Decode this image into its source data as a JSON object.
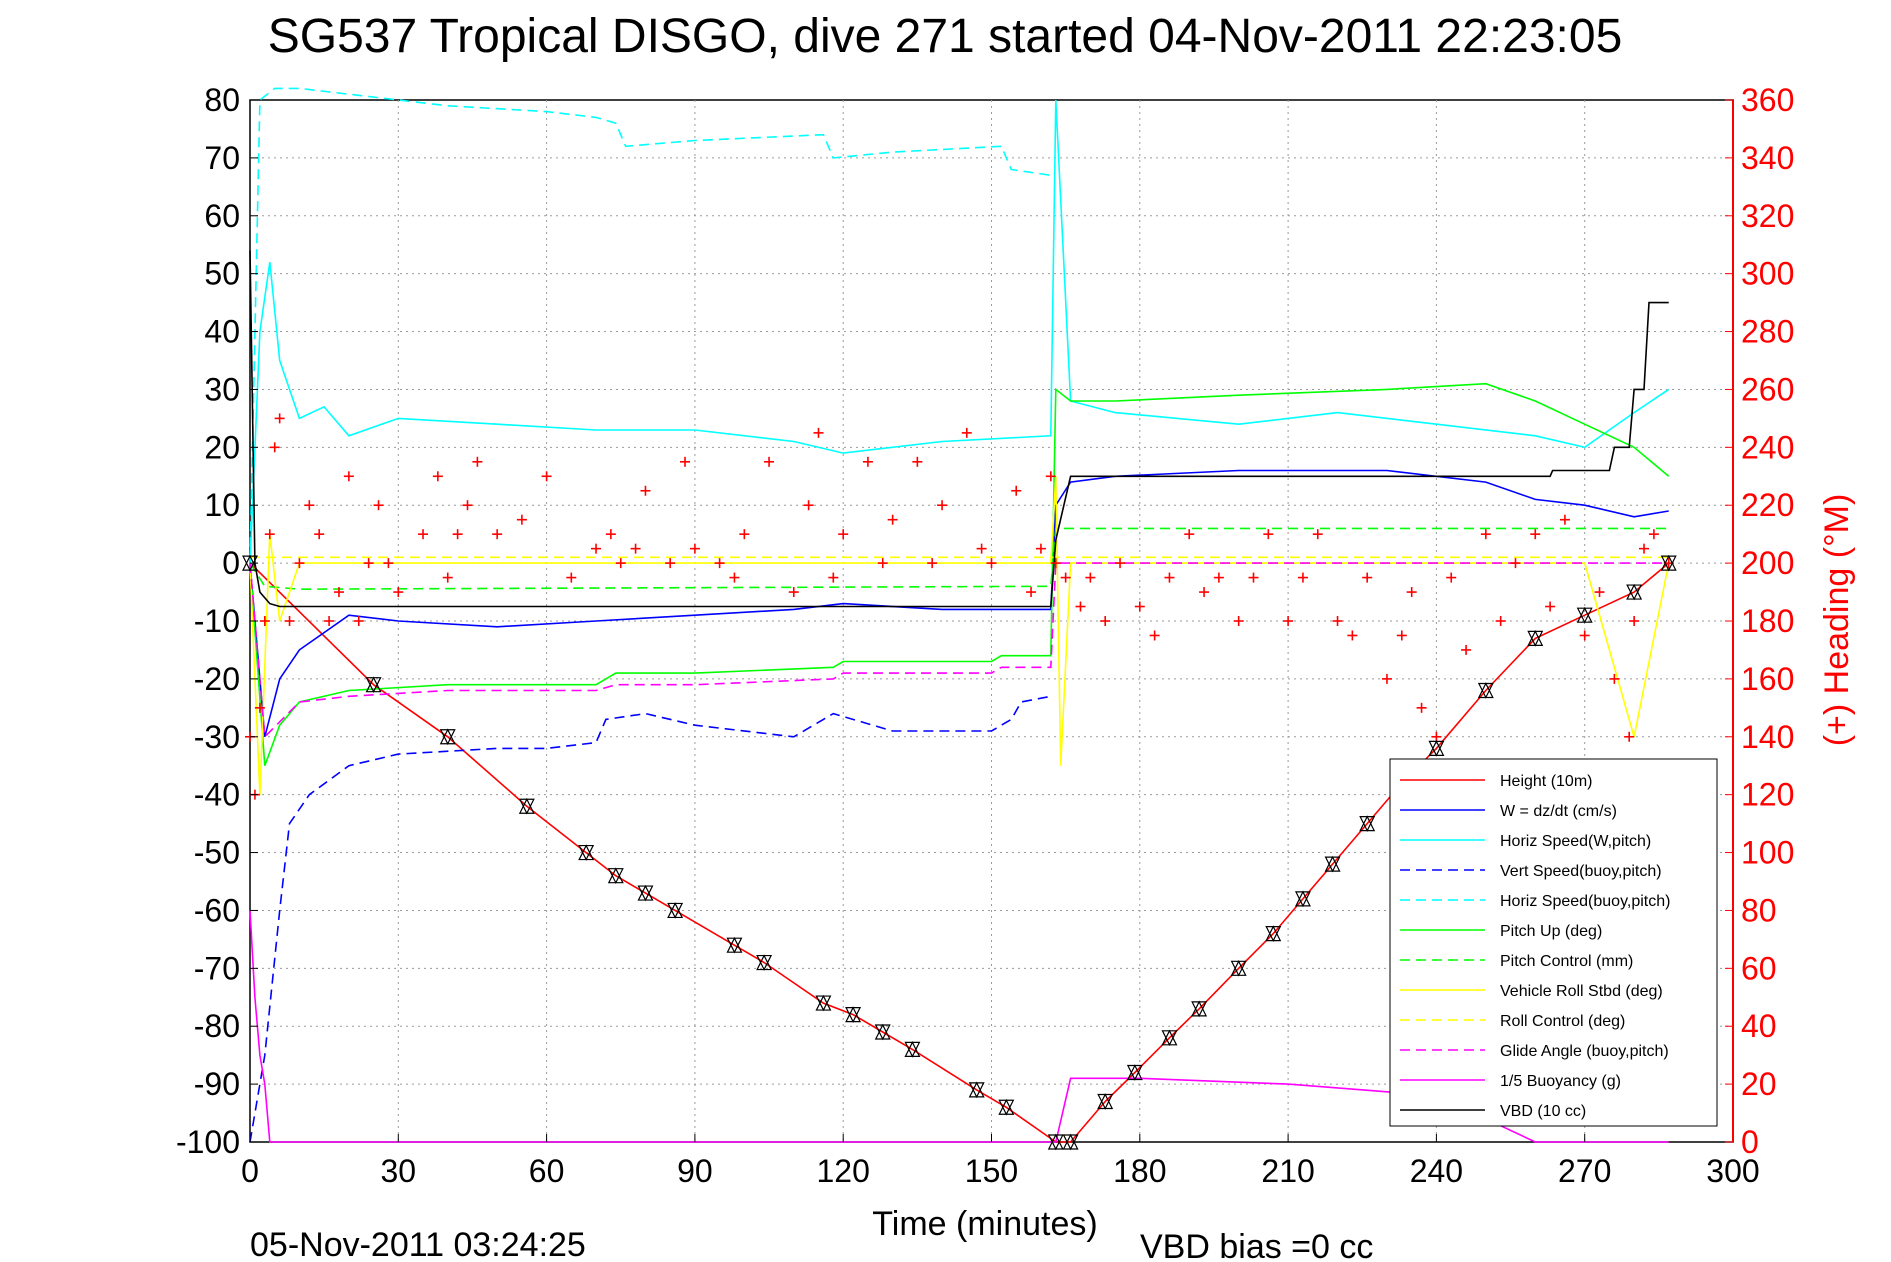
{
  "chart_data": {
    "type": "line",
    "title": "SG537 Tropical DISGO, dive 271 started 04-Nov-2011 22:23:05",
    "xlabel": "Time (minutes)",
    "ylabel_right": "(+) Heading (°M)",
    "xlim": [
      0,
      300
    ],
    "ylim": [
      -100,
      80
    ],
    "ylim_right": [
      0,
      360
    ],
    "x_ticks": [
      "0",
      "30",
      "60",
      "90",
      "120",
      "150",
      "180",
      "210",
      "240",
      "270",
      "300"
    ],
    "y_ticks": [
      "80",
      "70",
      "60",
      "50",
      "40",
      "30",
      "20",
      "10",
      "0",
      "-10",
      "-20",
      "-30",
      "-40",
      "-50",
      "-60",
      "-70",
      "-80",
      "-90",
      "-100"
    ],
    "y_ticks_right": [
      "360",
      "340",
      "320",
      "300",
      "280",
      "260",
      "240",
      "220",
      "200",
      "180",
      "160",
      "140",
      "120",
      "100",
      "80",
      "60",
      "40",
      "20",
      "0"
    ],
    "grid": true,
    "legend_position": "bottom-right",
    "end_time_label": "05-Nov-2011 03:24:25",
    "vbd_bias_label": "VBD bias =0 cc",
    "series": [
      {
        "name": "Height (10m)",
        "color": "#ff0000",
        "dash": false,
        "x": [
          0,
          25,
          40,
          56,
          68,
          74,
          80,
          86,
          98,
          104,
          116,
          122,
          128,
          134,
          147,
          153,
          163,
          166,
          173,
          179,
          186,
          192,
          200,
          207,
          213,
          219,
          226,
          233,
          240,
          250,
          260,
          270,
          280,
          287
        ],
        "y": [
          0,
          -21,
          -30,
          -42,
          -50,
          -54,
          -57,
          -60,
          -66,
          -69,
          -76,
          -78,
          -81,
          -84,
          -91,
          -94,
          -100,
          -100,
          -93,
          -88,
          -82,
          -77,
          -70,
          -64,
          -58,
          -52,
          -45,
          -38,
          -32,
          -22,
          -13,
          -9,
          -5,
          0
        ]
      },
      {
        "name": "W = dz/dt (cm/s)",
        "color": "#0000ff",
        "dash": false,
        "x": [
          0,
          3,
          6,
          10,
          15,
          20,
          30,
          50,
          70,
          90,
          110,
          120,
          140,
          162,
          163,
          166,
          175,
          200,
          230,
          250,
          260,
          270,
          280,
          287
        ],
        "y": [
          0,
          -30,
          -20,
          -15,
          -12,
          -9,
          -10,
          -11,
          -10,
          -9,
          -8,
          -7,
          -8,
          -8,
          10,
          14,
          15,
          16,
          16,
          14,
          11,
          10,
          8,
          9
        ]
      },
      {
        "name": "Horiz Speed(W,pitch)",
        "color": "#00ffff",
        "dash": false,
        "x": [
          0,
          2,
          4,
          6,
          10,
          15,
          20,
          30,
          50,
          70,
          90,
          110,
          120,
          140,
          162,
          163,
          166,
          175,
          200,
          220,
          240,
          260,
          270,
          280,
          287
        ],
        "y": [
          0,
          40,
          52,
          35,
          25,
          27,
          22,
          25,
          24,
          23,
          23,
          21,
          19,
          21,
          22,
          80,
          28,
          26,
          24,
          26,
          24,
          22,
          20,
          26,
          30
        ]
      },
      {
        "name": "Vert Speed(buoy,pitch)",
        "color": "#0000ff",
        "dash": true,
        "x": [
          0,
          3,
          6,
          8,
          12,
          20,
          30,
          50,
          60,
          70,
          72,
          80,
          90,
          110,
          116,
          118,
          130,
          150,
          154,
          156,
          162
        ],
        "y": [
          -100,
          -85,
          -60,
          -45,
          -40,
          -35,
          -33,
          -32,
          -32,
          -31,
          -27,
          -26,
          -28,
          -30,
          -27,
          -26,
          -29,
          -29,
          -27,
          -24,
          -23
        ]
      },
      {
        "name": "Horiz Speed(buoy,pitch)",
        "color": "#00ffff",
        "dash": true,
        "x": [
          0,
          2,
          5,
          10,
          20,
          40,
          60,
          70,
          74,
          76,
          90,
          116,
          118,
          130,
          152,
          154,
          162
        ],
        "y": [
          0,
          80,
          82,
          82,
          81,
          79,
          78,
          77,
          76,
          72,
          73,
          74,
          70,
          71,
          72,
          68,
          67
        ]
      },
      {
        "name": "Pitch Up (deg)",
        "color": "#00ff00",
        "dash": false,
        "x": [
          0,
          3,
          6,
          10,
          20,
          40,
          70,
          74,
          90,
          118,
          120,
          150,
          152,
          162,
          163,
          166,
          175,
          200,
          230,
          250,
          260,
          270,
          280,
          287
        ],
        "y": [
          0,
          -35,
          -28,
          -24,
          -22,
          -21,
          -21,
          -19,
          -19,
          -18,
          -17,
          -17,
          -16,
          -16,
          30,
          28,
          28,
          29,
          30,
          31,
          28,
          24,
          20,
          15
        ]
      },
      {
        "name": "Pitch Control (mm)",
        "color": "#00ff00",
        "dash": true,
        "x": [
          0,
          3,
          10,
          162,
          163,
          287
        ],
        "y": [
          0,
          -4,
          -4.5,
          -4,
          6,
          6
        ]
      },
      {
        "name": "Vehicle Roll Stbd (deg)",
        "color": "#ffff00",
        "dash": false,
        "x": [
          0,
          2,
          4,
          6,
          10,
          20,
          40,
          70,
          100,
          130,
          162,
          163,
          164,
          166,
          200,
          240,
          270,
          280,
          287
        ],
        "y": [
          0,
          -40,
          5,
          -10,
          0,
          0,
          0,
          0,
          0,
          0,
          0,
          15,
          -35,
          0,
          0,
          0,
          0,
          -30,
          0
        ]
      },
      {
        "name": "Roll Control (deg)",
        "color": "#ffff00",
        "dash": true,
        "x": [
          0,
          287
        ],
        "y": [
          1,
          1
        ]
      },
      {
        "name": "Glide Angle (buoy,pitch)",
        "color": "#ff00ff",
        "dash": true,
        "x": [
          0,
          3,
          10,
          20,
          40,
          70,
          74,
          90,
          118,
          120,
          150,
          152,
          162,
          163,
          287
        ],
        "y": [
          0,
          -30,
          -24,
          -23,
          -22,
          -22,
          -21,
          -21,
          -20,
          -19,
          -19,
          -18,
          -18,
          0,
          0
        ]
      },
      {
        "name": "1/5 Buoyancy (g)",
        "color": "#ff00ff",
        "dash": false,
        "x": [
          0,
          1,
          2,
          3,
          4,
          162,
          163,
          166,
          180,
          210,
          240,
          260,
          287
        ],
        "y": [
          -60,
          -75,
          -85,
          -90,
          -100,
          -100,
          -100,
          -89,
          -89,
          -90,
          -92,
          -100,
          -100
        ]
      },
      {
        "name": "VBD (10 cc)",
        "color": "#000000",
        "dash": false,
        "x": [
          0,
          1,
          2,
          4,
          6,
          10,
          162,
          163,
          166,
          263,
          263.5,
          275,
          276,
          279,
          280,
          282,
          283,
          287
        ],
        "y": [
          54,
          0,
          -5,
          -7,
          -7.5,
          -7.5,
          -7.5,
          4,
          15,
          15,
          16,
          16,
          20,
          20,
          30,
          30,
          45,
          45
        ]
      }
    ],
    "heading": {
      "name": "(+) Heading (°M)",
      "color": "#ff0000",
      "marker": "+",
      "x": [
        0,
        1,
        2,
        3,
        4,
        5,
        6,
        8,
        10,
        12,
        14,
        16,
        18,
        20,
        22,
        24,
        26,
        28,
        30,
        35,
        38,
        40,
        42,
        44,
        46,
        50,
        55,
        60,
        65,
        70,
        73,
        75,
        78,
        80,
        85,
        88,
        90,
        95,
        98,
        100,
        105,
        110,
        113,
        115,
        118,
        120,
        125,
        128,
        130,
        135,
        138,
        140,
        145,
        148,
        150,
        155,
        158,
        160,
        162,
        163,
        165,
        168,
        170,
        173,
        176,
        180,
        183,
        186,
        190,
        193,
        196,
        200,
        203,
        206,
        210,
        213,
        216,
        220,
        223,
        226,
        230,
        233,
        235,
        237,
        240,
        243,
        246,
        250,
        253,
        256,
        260,
        263,
        266,
        270,
        273,
        276,
        278,
        279,
        280,
        282,
        284,
        287
      ],
      "y": [
        140,
        120,
        150,
        180,
        210,
        240,
        250,
        180,
        200,
        220,
        210,
        180,
        190,
        230,
        180,
        200,
        220,
        200,
        190,
        210,
        230,
        195,
        210,
        220,
        235,
        210,
        215,
        230,
        195,
        205,
        210,
        200,
        205,
        225,
        200,
        235,
        205,
        200,
        195,
        210,
        235,
        190,
        220,
        245,
        195,
        210,
        235,
        200,
        215,
        235,
        200,
        220,
        245,
        205,
        200,
        225,
        190,
        205,
        230,
        200,
        195,
        185,
        195,
        180,
        200,
        185,
        175,
        195,
        210,
        190,
        195,
        180,
        195,
        210,
        180,
        195,
        210,
        180,
        175,
        195,
        160,
        175,
        190,
        150,
        140,
        195,
        170,
        210,
        180,
        200,
        210,
        185,
        215,
        175,
        190,
        160,
        120,
        140,
        180,
        205,
        210,
        200
      ]
    }
  }
}
